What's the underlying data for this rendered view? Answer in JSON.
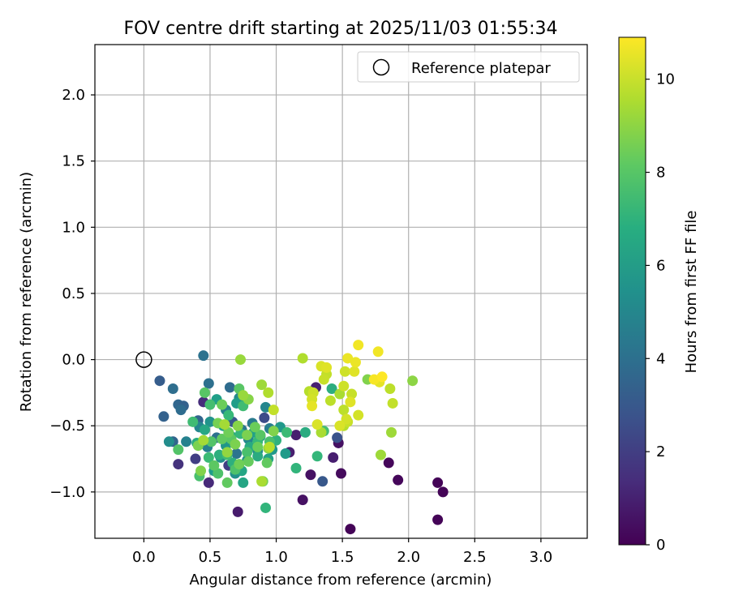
{
  "chart_data": {
    "type": "scatter",
    "title": "FOV centre drift starting at 2025/11/03 01:55:34",
    "xlabel": "Angular distance from reference (arcmin)",
    "ylabel": "Rotation from reference (arcmin)",
    "xlim": [
      -0.37,
      3.35
    ],
    "ylim": [
      -1.35,
      2.38
    ],
    "x_ticks": [
      "0.0",
      "0.5",
      "1.0",
      "1.5",
      "2.0",
      "2.5",
      "3.0"
    ],
    "y_ticks": [
      "2.0",
      "1.5",
      "1.0",
      "0.5",
      "0.0",
      "−0.5",
      "−1.0"
    ],
    "grid": true,
    "legend": {
      "placement": "top-right",
      "entries": [
        {
          "label": "Reference platepar",
          "marker": "open-circle"
        }
      ]
    },
    "colorbar": {
      "label": "Hours from first FF file",
      "range": [
        0,
        10.9
      ],
      "ticks": [
        "0",
        "2",
        "4",
        "6",
        "8",
        "10"
      ],
      "colormap": "viridis"
    },
    "reference": {
      "x": 0.0,
      "y": 0.0
    },
    "series": [
      {
        "name": "FOV centre drift",
        "points": [
          [
            1.56,
            -1.28,
            0.1
          ],
          [
            2.22,
            -1.21,
            0.1
          ],
          [
            2.26,
            -1.0,
            0.1
          ],
          [
            2.22,
            -0.93,
            0.1
          ],
          [
            1.92,
            -0.91,
            0.2
          ],
          [
            1.85,
            -0.78,
            0.2
          ],
          [
            1.49,
            -0.86,
            0.3
          ],
          [
            1.47,
            -0.63,
            0.5
          ],
          [
            1.26,
            -0.87,
            0.5
          ],
          [
            1.2,
            -1.06,
            0.5
          ],
          [
            0.71,
            -1.15,
            0.8
          ],
          [
            1.1,
            -0.7,
            0.9
          ],
          [
            1.15,
            -0.57,
            0.9
          ],
          [
            1.43,
            -0.74,
            0.9
          ],
          [
            1.3,
            -0.21,
            1.0
          ],
          [
            0.49,
            -0.93,
            1.3
          ],
          [
            0.45,
            -0.32,
            1.4
          ],
          [
            0.26,
            -0.79,
            1.6
          ],
          [
            0.64,
            -0.8,
            2.0
          ],
          [
            0.39,
            -0.75,
            2.0
          ],
          [
            0.91,
            -0.44,
            2.5
          ],
          [
            1.46,
            -0.59,
            2.8
          ],
          [
            1.35,
            -0.92,
            3.0
          ],
          [
            0.67,
            -0.47,
            3.0
          ],
          [
            0.12,
            -0.16,
            3.2
          ],
          [
            0.15,
            -0.43,
            3.4
          ],
          [
            0.26,
            -0.34,
            3.6
          ],
          [
            0.22,
            -0.62,
            3.5
          ],
          [
            0.3,
            -0.35,
            3.4
          ],
          [
            0.41,
            -0.46,
            3.5
          ],
          [
            0.28,
            -0.38,
            3.8
          ],
          [
            0.22,
            -0.22,
            3.9
          ],
          [
            0.49,
            -0.18,
            4.0
          ],
          [
            0.45,
            0.03,
            4.1
          ],
          [
            0.65,
            -0.21,
            3.8
          ],
          [
            0.55,
            -0.59,
            4.0
          ],
          [
            0.7,
            -0.71,
            4.2
          ],
          [
            0.74,
            -0.53,
            4.4
          ],
          [
            0.82,
            -0.48,
            4.5
          ],
          [
            0.95,
            -0.52,
            4.6
          ],
          [
            0.62,
            -0.38,
            4.7
          ],
          [
            0.32,
            -0.62,
            4.8
          ],
          [
            0.48,
            -0.66,
            4.8
          ],
          [
            0.42,
            -0.51,
            5.0
          ],
          [
            0.92,
            -0.36,
            5.0
          ],
          [
            0.79,
            -0.6,
            5.0
          ],
          [
            0.86,
            -0.69,
            5.2
          ],
          [
            0.72,
            -0.29,
            5.2
          ],
          [
            0.19,
            -0.62,
            5.3
          ],
          [
            0.58,
            -0.74,
            5.4
          ],
          [
            0.69,
            -0.86,
            5.5
          ],
          [
            0.78,
            -0.76,
            5.5
          ],
          [
            0.88,
            -0.58,
            5.6
          ],
          [
            0.5,
            -0.47,
            5.6
          ],
          [
            0.62,
            -0.65,
            5.7
          ],
          [
            1.03,
            -0.51,
            5.8
          ],
          [
            0.97,
            -0.68,
            5.8
          ],
          [
            1.07,
            -0.71,
            5.9
          ],
          [
            0.53,
            -0.84,
            6.0
          ],
          [
            0.7,
            -0.33,
            6.0
          ],
          [
            0.55,
            -0.3,
            6.1
          ],
          [
            0.83,
            -0.55,
            6.2
          ],
          [
            0.6,
            -0.5,
            6.2
          ],
          [
            0.94,
            -0.75,
            6.3
          ],
          [
            0.74,
            -0.84,
            6.4
          ],
          [
            0.75,
            -0.93,
            6.4
          ],
          [
            0.46,
            -0.53,
            6.5
          ],
          [
            0.66,
            -0.58,
            6.6
          ],
          [
            0.8,
            -0.66,
            6.6
          ],
          [
            0.4,
            -0.63,
            6.7
          ],
          [
            0.86,
            -0.73,
            6.7
          ],
          [
            1.22,
            -0.55,
            6.7
          ],
          [
            1.42,
            -0.22,
            6.8
          ],
          [
            0.57,
            -0.72,
            6.9
          ],
          [
            0.67,
            -0.78,
            6.9
          ],
          [
            1.0,
            -0.61,
            7.0
          ],
          [
            0.92,
            -1.12,
            7.1
          ],
          [
            1.15,
            -0.82,
            7.1
          ],
          [
            1.31,
            -0.73,
            7.2
          ],
          [
            0.73,
            -0.56,
            7.2
          ],
          [
            0.64,
            -0.42,
            7.3
          ],
          [
            0.86,
            -0.62,
            7.3
          ],
          [
            1.08,
            -0.55,
            7.4
          ],
          [
            0.49,
            -0.74,
            7.4
          ],
          [
            0.37,
            -0.47,
            7.5
          ],
          [
            0.75,
            -0.35,
            7.5
          ],
          [
            0.63,
            -0.72,
            7.5
          ],
          [
            0.5,
            -0.34,
            7.6
          ],
          [
            1.36,
            -0.54,
            7.6
          ],
          [
            0.78,
            -0.7,
            7.7
          ],
          [
            0.95,
            -0.62,
            7.7
          ],
          [
            0.42,
            -0.88,
            7.7
          ],
          [
            0.69,
            -0.83,
            7.8
          ],
          [
            0.56,
            -0.86,
            7.8
          ],
          [
            0.26,
            -0.68,
            7.9
          ],
          [
            0.51,
            -0.62,
            7.9
          ],
          [
            0.46,
            -0.25,
            8.0
          ],
          [
            0.72,
            -0.22,
            8.0
          ],
          [
            0.88,
            -0.57,
            8.0
          ],
          [
            0.66,
            -0.6,
            8.1
          ],
          [
            0.53,
            -0.8,
            8.1
          ],
          [
            0.63,
            -0.93,
            8.2
          ],
          [
            0.93,
            -0.78,
            8.2
          ],
          [
            0.59,
            -0.6,
            8.2
          ],
          [
            0.79,
            -0.77,
            8.3
          ],
          [
            0.84,
            -0.51,
            8.4
          ],
          [
            0.59,
            -0.34,
            8.4
          ],
          [
            0.86,
            -0.66,
            8.4
          ],
          [
            0.64,
            -0.55,
            8.5
          ],
          [
            0.72,
            -0.79,
            8.5
          ],
          [
            0.9,
            -0.92,
            8.6
          ],
          [
            0.56,
            -0.48,
            8.6
          ],
          [
            0.41,
            -0.65,
            8.7
          ],
          [
            0.69,
            -0.64,
            8.7
          ],
          [
            0.78,
            -0.57,
            8.7
          ],
          [
            0.43,
            -0.84,
            8.8
          ],
          [
            0.98,
            -0.54,
            8.8
          ],
          [
            1.69,
            -0.15,
            8.8
          ],
          [
            0.79,
            -0.3,
            8.9
          ],
          [
            0.71,
            -0.5,
            8.9
          ],
          [
            2.03,
            -0.16,
            9.0
          ],
          [
            0.94,
            -0.67,
            9.0
          ],
          [
            0.63,
            -0.7,
            9.1
          ],
          [
            0.73,
            0.0,
            9.2
          ],
          [
            0.75,
            -0.27,
            9.2
          ],
          [
            1.79,
            -0.72,
            9.3
          ],
          [
            1.87,
            -0.55,
            9.3
          ],
          [
            0.89,
            -0.19,
            9.3
          ],
          [
            0.61,
            -0.49,
            9.4
          ],
          [
            0.45,
            -0.61,
            9.4
          ],
          [
            0.89,
            -0.92,
            9.5
          ],
          [
            1.34,
            -0.55,
            9.5
          ],
          [
            1.48,
            -0.26,
            9.5
          ],
          [
            0.94,
            -0.25,
            9.6
          ],
          [
            1.2,
            0.01,
            9.6
          ],
          [
            1.25,
            -0.24,
            9.7
          ],
          [
            0.95,
            -0.66,
            9.7
          ],
          [
            1.51,
            -0.5,
            9.7
          ],
          [
            1.41,
            -0.31,
            9.8
          ],
          [
            1.51,
            -0.38,
            9.8
          ],
          [
            1.86,
            -0.22,
            9.8
          ],
          [
            0.98,
            -0.38,
            9.9
          ],
          [
            1.38,
            -0.11,
            9.9
          ],
          [
            1.88,
            -0.33,
            9.9
          ],
          [
            1.57,
            -0.26,
            10.0
          ],
          [
            1.36,
            -0.15,
            10.0
          ],
          [
            1.54,
            -0.47,
            10.0
          ],
          [
            1.51,
            -0.2,
            10.1
          ],
          [
            1.28,
            -0.25,
            10.1
          ],
          [
            1.52,
            -0.09,
            10.1
          ],
          [
            1.27,
            -0.3,
            10.2
          ],
          [
            1.53,
            -0.45,
            10.2
          ],
          [
            1.62,
            -0.42,
            10.2
          ],
          [
            1.48,
            -0.5,
            10.3
          ],
          [
            1.31,
            -0.49,
            10.3
          ],
          [
            1.34,
            -0.05,
            10.3
          ],
          [
            1.59,
            -0.09,
            10.4
          ],
          [
            1.38,
            -0.06,
            10.4
          ],
          [
            1.56,
            -0.32,
            10.4
          ],
          [
            1.27,
            -0.35,
            10.5
          ],
          [
            1.78,
            -0.17,
            10.5
          ],
          [
            1.6,
            -0.02,
            10.6
          ],
          [
            1.54,
            0.01,
            10.6
          ],
          [
            1.77,
            0.06,
            10.7
          ],
          [
            1.62,
            0.11,
            10.7
          ],
          [
            1.74,
            -0.15,
            10.8
          ],
          [
            1.8,
            -0.13,
            10.9
          ]
        ]
      }
    ]
  }
}
